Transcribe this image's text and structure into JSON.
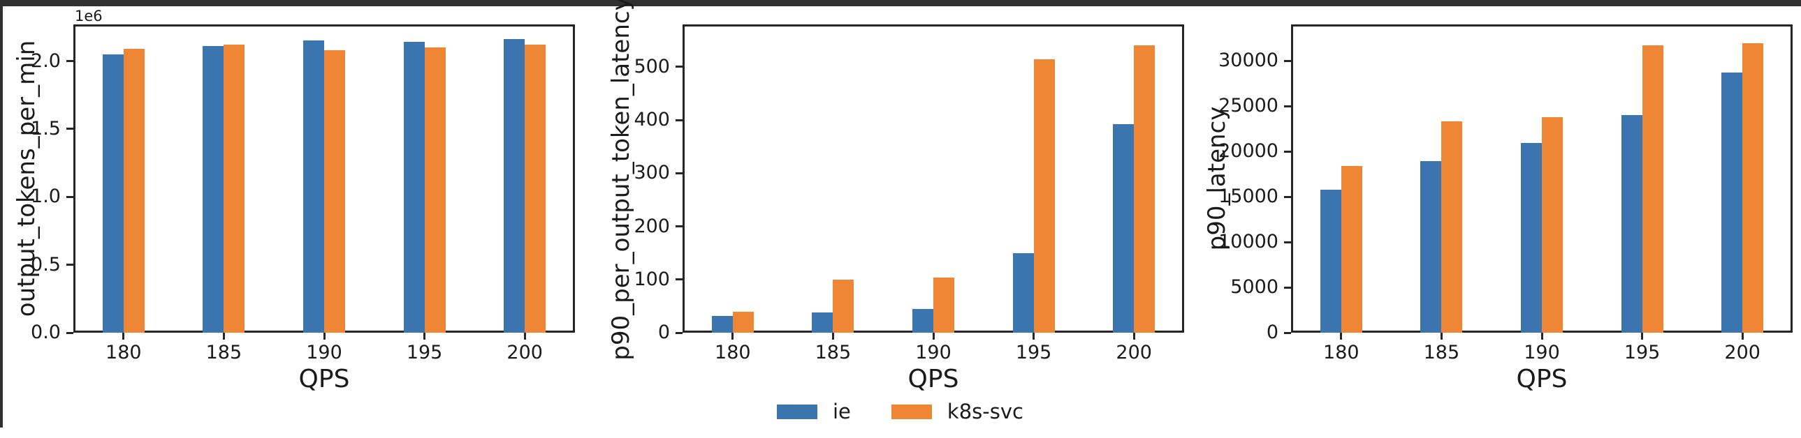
{
  "window": {
    "top_bar_color": "#303030",
    "left_edge_color": "#303030",
    "background_color": "#ffffff"
  },
  "colors": {
    "ie": "#3B75AF",
    "k8s_svc": "#EF8636",
    "spine": "#262626",
    "text": "#1a1a1a"
  },
  "legend": {
    "entries": [
      {
        "label": "ie",
        "color_key": "ie"
      },
      {
        "label": "k8s-svc",
        "color_key": "k8s_svc"
      }
    ]
  },
  "chart_data": [
    {
      "type": "bar",
      "title": "",
      "xlabel": "QPS",
      "ylabel": "output_tokens_per_min",
      "offset_text": "1e6",
      "categories": [
        "180",
        "185",
        "190",
        "195",
        "200"
      ],
      "series": [
        {
          "name": "ie",
          "values": [
            2050000,
            2110000,
            2150000,
            2140000,
            2160000
          ]
        },
        {
          "name": "k8s-svc",
          "values": [
            2090000,
            2120000,
            2080000,
            2100000,
            2120000
          ]
        }
      ],
      "ylim": [
        0,
        2270000
      ],
      "yticks": [
        0,
        500000,
        1000000,
        1500000,
        2000000
      ],
      "ytick_labels": [
        "0.0",
        "0.5",
        "1.0",
        "1.5",
        "2.0"
      ],
      "grid": false,
      "legend_position": "below-figure"
    },
    {
      "type": "bar",
      "title": "",
      "xlabel": "QPS",
      "ylabel": "p90_per_output_token_latency",
      "offset_text": "",
      "categories": [
        "180",
        "185",
        "190",
        "195",
        "200"
      ],
      "series": [
        {
          "name": "ie",
          "values": [
            32,
            38,
            44,
            150,
            392
          ]
        },
        {
          "name": "k8s-svc",
          "values": [
            40,
            100,
            104,
            515,
            540
          ]
        }
      ],
      "ylim": [
        0,
        580
      ],
      "yticks": [
        0,
        100,
        200,
        300,
        400,
        500
      ],
      "ytick_labels": [
        "0",
        "100",
        "200",
        "300",
        "400",
        "500"
      ],
      "grid": false,
      "legend_position": "below-figure"
    },
    {
      "type": "bar",
      "title": "",
      "xlabel": "QPS",
      "ylabel": "p90_latency",
      "offset_text": "",
      "categories": [
        "180",
        "185",
        "190",
        "195",
        "200"
      ],
      "series": [
        {
          "name": "ie",
          "values": [
            15800,
            18900,
            20900,
            24000,
            28700
          ]
        },
        {
          "name": "k8s-svc",
          "values": [
            18400,
            23300,
            23800,
            31700,
            31900
          ]
        }
      ],
      "ylim": [
        0,
        34000
      ],
      "yticks": [
        0,
        5000,
        10000,
        15000,
        20000,
        25000,
        30000
      ],
      "ytick_labels": [
        "0",
        "5000",
        "10000",
        "15000",
        "20000",
        "25000",
        "30000"
      ],
      "grid": false,
      "legend_position": "below-figure"
    }
  ]
}
